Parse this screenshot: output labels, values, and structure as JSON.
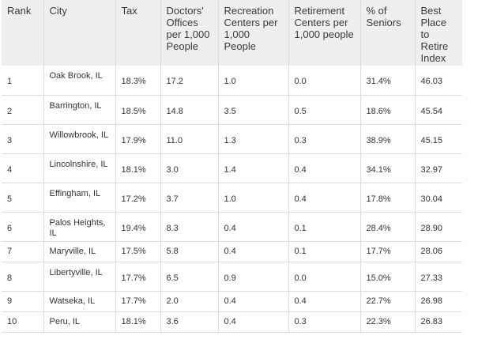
{
  "headers": {
    "rank": "Rank",
    "city": "City",
    "tax": "Tax",
    "doctors": "Doctors' Offices per 1,000 People",
    "recreation": "Recreation Centers per 1,000 People",
    "retirement": "Retirement Centers per 1,000 people",
    "seniors": "% of Seniors",
    "index": "Best Place to Retire Index"
  },
  "rows": [
    {
      "rank": "1",
      "city": "Oak Brook, IL",
      "tax": "18.3%",
      "doctors": "17.2",
      "recreation": "1.0",
      "retirement": "0.0",
      "seniors": "31.4%",
      "index": "46.03"
    },
    {
      "rank": "2",
      "city": "Barrington, IL",
      "tax": "18.5%",
      "doctors": "14.8",
      "recreation": "3.5",
      "retirement": "0.5",
      "seniors": "18.6%",
      "index": "45.54"
    },
    {
      "rank": "3",
      "city": "Willowbrook, IL",
      "tax": "17.9%",
      "doctors": "11.0",
      "recreation": "1.3",
      "retirement": "0.3",
      "seniors": "38.9%",
      "index": "45.15"
    },
    {
      "rank": "4",
      "city": "Lincolnshire, IL",
      "tax": "18.1%",
      "doctors": "3.0",
      "recreation": "1.4",
      "retirement": "0.4",
      "seniors": "34.1%",
      "index": "32.97"
    },
    {
      "rank": "5",
      "city": "Effingham, IL",
      "tax": "17.2%",
      "doctors": "3.7",
      "recreation": "1.0",
      "retirement": "0.4",
      "seniors": "17.8%",
      "index": "30.04"
    },
    {
      "rank": "6",
      "city": "Palos Heights, IL",
      "tax": "19.4%",
      "doctors": "8.3",
      "recreation": "0.4",
      "retirement": "0.1",
      "seniors": "28.4%",
      "index": "28.90"
    },
    {
      "rank": "7",
      "city": "Maryville, IL",
      "tax": "17.5%",
      "doctors": "5.8",
      "recreation": "0.4",
      "retirement": "0.1",
      "seniors": "17.7%",
      "index": "28.06"
    },
    {
      "rank": "8",
      "city": "Libertyville, IL",
      "tax": "17.7%",
      "doctors": "6.5",
      "recreation": "0.9",
      "retirement": "0.0",
      "seniors": "15.0%",
      "index": "27.33"
    },
    {
      "rank": "9",
      "city": "Watseka, IL",
      "tax": "17.7%",
      "doctors": "2.0",
      "recreation": "0.4",
      "retirement": "0.4",
      "seniors": "22.7%",
      "index": "26.98"
    },
    {
      "rank": "10",
      "city": "Peru, IL",
      "tax": "18.1%",
      "doctors": "3.6",
      "recreation": "0.4",
      "retirement": "0.3",
      "seniors": "22.3%",
      "index": "26.83"
    }
  ]
}
